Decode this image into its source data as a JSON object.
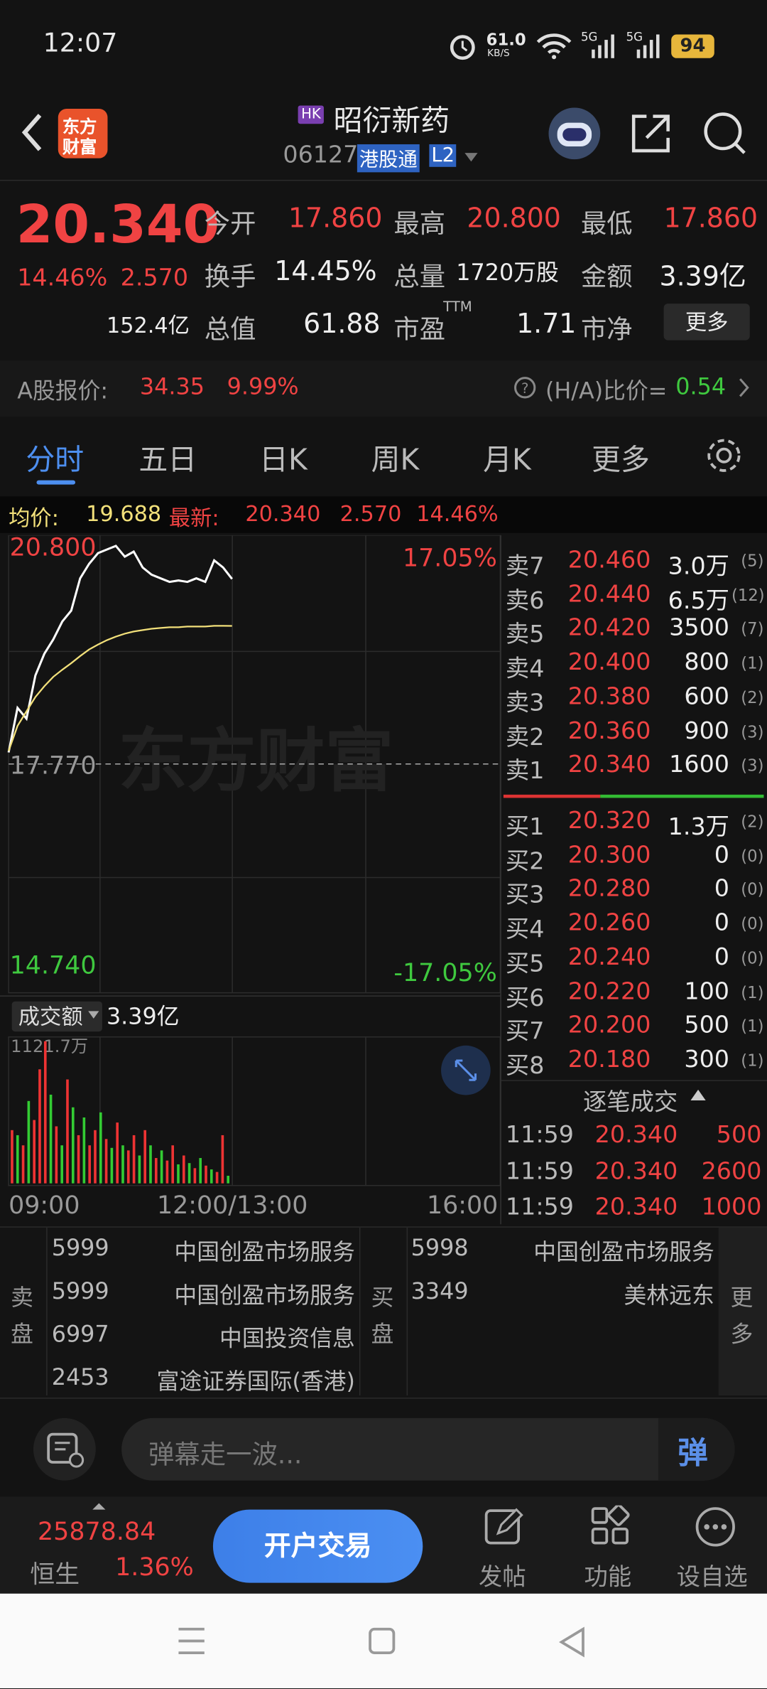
{
  "status_bar": {
    "time": "12:07",
    "speed": "61.0",
    "speed_unit": "KB/S",
    "network": "5G",
    "battery": "94"
  },
  "header": {
    "logo": [
      "东方",
      "财富"
    ],
    "market_badge": "HK",
    "name": "昭衍新药",
    "code": "06127",
    "connect_tag": "港股通",
    "level_tag": "L2"
  },
  "quote": {
    "price": "20.340",
    "change_pct": "14.46%",
    "change": "2.570",
    "stats": [
      [
        {
          "label": "今开",
          "value": "17.860"
        },
        {
          "label": "最高",
          "value": "20.800"
        },
        {
          "label": "最低",
          "value": "17.860"
        }
      ],
      [
        {
          "label": "换手",
          "value": "14.45%"
        },
        {
          "label": "总量",
          "value": "1720万股"
        },
        {
          "label": "金额",
          "value": "3.39亿"
        }
      ],
      [
        {
          "label": "总值",
          "value": "152.4亿"
        },
        {
          "label": "市盈",
          "sup": "TTM",
          "value": "61.88"
        },
        {
          "label": "市净",
          "value": "1.71"
        }
      ]
    ],
    "more_button": "更多"
  },
  "a_share": {
    "label": "A股报价:",
    "price": "34.35",
    "change_pct": "9.99%",
    "ratio_label": "(H/A)比价=",
    "ratio": "0.54"
  },
  "tabs": [
    "分时",
    "五日",
    "日K",
    "周K",
    "月K",
    "更多"
  ],
  "info_line": {
    "avg_label": "均价:",
    "avg": "19.688",
    "latest_label": "最新:",
    "latest": "20.340",
    "change": "2.570",
    "change_pct": "14.46%"
  },
  "chart_data": [
    {
      "type": "line",
      "watermark": "东方财富",
      "ylim": [
        14.74,
        20.8
      ],
      "yticks": [
        {
          "value": 20.8,
          "label": "20.800"
        },
        {
          "value": 17.77,
          "label": "17.770"
        },
        {
          "value": 14.74,
          "label": "14.740"
        }
      ],
      "y2lim": [
        -17.05,
        17.05
      ],
      "y2ticks": [
        {
          "value": 17.05,
          "label": "17.05%"
        },
        {
          "value": -17.05,
          "label": "-17.05%"
        }
      ],
      "x_labels": [
        "09:00",
        "12:00/13:00",
        "16:00"
      ],
      "series": [
        {
          "color": "#ffffff",
          "values": [
            17.93,
            18.55,
            18.4,
            19.0,
            19.3,
            19.5,
            19.75,
            19.9,
            20.35,
            20.55,
            20.7,
            20.75,
            20.8,
            20.65,
            20.72,
            20.5,
            20.4,
            20.35,
            20.3,
            20.32,
            20.3,
            20.35,
            20.3,
            20.6,
            20.5,
            20.34
          ]
        },
        {
          "color": "#f2e07a",
          "values": [
            17.95,
            18.3,
            18.5,
            18.7,
            18.85,
            18.98,
            19.08,
            19.17,
            19.27,
            19.36,
            19.43,
            19.49,
            19.54,
            19.58,
            19.61,
            19.63,
            19.65,
            19.66,
            19.67,
            19.67,
            19.68,
            19.68,
            19.68,
            19.69,
            19.69,
            19.688
          ]
        }
      ]
    },
    {
      "type": "bar",
      "label": "成交额",
      "total": "3.39亿",
      "ylim": [
        0,
        1121.7
      ],
      "yticks": [
        {
          "value": 1121.7,
          "label": "1121.7万"
        }
      ],
      "values": [
        420,
        380,
        300,
        650,
        500,
        900,
        1121.7,
        700,
        450,
        300,
        820,
        600,
        380,
        520,
        300,
        420,
        560,
        350,
        280,
        480,
        300,
        260,
        380,
        220,
        420,
        300,
        200,
        260,
        180,
        300,
        150,
        220,
        160,
        120,
        200,
        140,
        110,
        90,
        380,
        60
      ],
      "colors": [
        "#e33",
        "#3c3",
        "#e33",
        "#3c3",
        "#e33",
        "#e33",
        "#e33",
        "#3c3",
        "#e33",
        "#3c3",
        "#e33",
        "#3c3",
        "#e33",
        "#3c3",
        "#e33",
        "#e33",
        "#3c3",
        "#e33",
        "#3c3",
        "#e33",
        "#3c3",
        "#e33",
        "#e33",
        "#3c3",
        "#e33",
        "#3c3",
        "#e33",
        "#3c3",
        "#e33",
        "#e33",
        "#3c3",
        "#e33",
        "#3c3",
        "#e33",
        "#3c3",
        "#e33",
        "#3c3",
        "#e33",
        "#e33",
        "#3c3"
      ]
    }
  ],
  "order_book": {
    "asks": [
      {
        "label": "卖7",
        "price": "20.460",
        "volume": "3.0万",
        "count": "(5)"
      },
      {
        "label": "卖6",
        "price": "20.440",
        "volume": "6.5万",
        "count": "(12)"
      },
      {
        "label": "卖5",
        "price": "20.420",
        "volume": "3500",
        "count": "(7)"
      },
      {
        "label": "卖4",
        "price": "20.400",
        "volume": "800",
        "count": "(1)"
      },
      {
        "label": "卖3",
        "price": "20.380",
        "volume": "600",
        "count": "(2)"
      },
      {
        "label": "卖2",
        "price": "20.360",
        "volume": "900",
        "count": "(3)"
      },
      {
        "label": "卖1",
        "price": "20.340",
        "volume": "1600",
        "count": "(3)"
      }
    ],
    "bids": [
      {
        "label": "买1",
        "price": "20.320",
        "volume": "1.3万",
        "count": "(2)"
      },
      {
        "label": "买2",
        "price": "20.300",
        "volume": "0",
        "count": "(0)"
      },
      {
        "label": "买3",
        "price": "20.280",
        "volume": "0",
        "count": "(0)"
      },
      {
        "label": "买4",
        "price": "20.260",
        "volume": "0",
        "count": "(0)"
      },
      {
        "label": "买5",
        "price": "20.240",
        "volume": "0",
        "count": "(0)"
      },
      {
        "label": "买6",
        "price": "20.220",
        "volume": "100",
        "count": "(1)"
      },
      {
        "label": "买7",
        "price": "20.200",
        "volume": "500",
        "count": "(1)"
      },
      {
        "label": "买8",
        "price": "20.180",
        "volume": "300",
        "count": "(1)"
      }
    ]
  },
  "trades": {
    "title": "逐笔成交",
    "rows": [
      [
        "11:59",
        "20.340",
        "500"
      ],
      [
        "11:59",
        "20.340",
        "2600"
      ],
      [
        "11:59",
        "20.340",
        "1000"
      ]
    ]
  },
  "brokers": {
    "sell_label": "卖盘",
    "sell": [
      [
        "5999",
        "中国创盈市场服务"
      ],
      [
        "5999",
        "中国创盈市场服务"
      ],
      [
        "6997",
        "中国投资信息"
      ],
      [
        "2453",
        "富途证券国际(香港)"
      ]
    ],
    "buy_label": "买盘",
    "buy": [
      [
        "5998",
        "中国创盈市场服务"
      ],
      [
        "3349",
        "美林远东"
      ]
    ],
    "more": "更多"
  },
  "comment": {
    "placeholder": "弹幕走一波...",
    "button": "弹"
  },
  "bottom_bar": {
    "index_value": "25878.84",
    "index_name": "恒生",
    "index_change": "1.36%",
    "trade_button": "开户交易",
    "actions": [
      "发帖",
      "功能",
      "设自选"
    ]
  }
}
